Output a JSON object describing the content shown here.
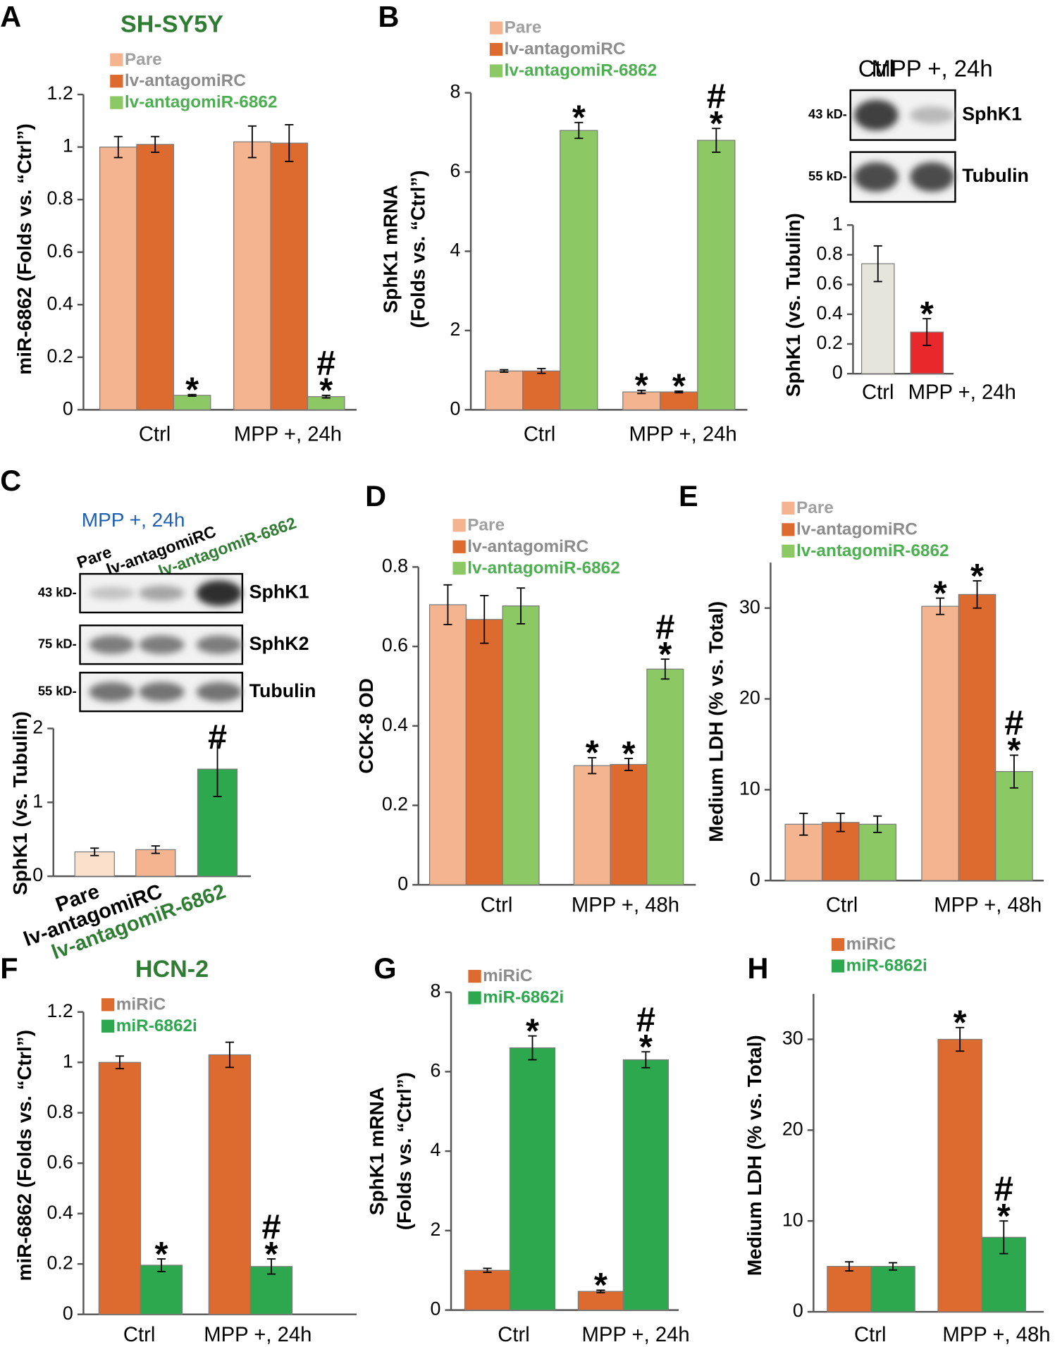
{
  "chart_data": [
    {
      "type": "bar",
      "panel": "A",
      "title": "SH-SY5Y",
      "title_color": "#2e7d32",
      "ylabel": [
        "miR-6862 (Folds vs. “Ctrl”)"
      ],
      "categories": [
        "Ctrl",
        "MPP +, 24h"
      ],
      "ylim": [
        0,
        1.2
      ],
      "yticks": [
        0,
        0.2,
        0.4,
        0.6,
        0.8,
        1,
        1.2
      ],
      "series": [
        {
          "name": "Pare",
          "color": "#f4b48f",
          "label_color": "#a0a0a0",
          "values": [
            1.0,
            1.02
          ],
          "errors": [
            0.04,
            0.06
          ],
          "annotations": [
            null,
            null
          ]
        },
        {
          "name": "lv-antagomiRC",
          "color": "#dd6a2e",
          "label_color": "#8c8c8c",
          "values": [
            1.01,
            1.015
          ],
          "errors": [
            0.03,
            0.07
          ],
          "annotations": [
            null,
            null
          ]
        },
        {
          "name": "lv-antagomiR-6862",
          "color": "#8cc965",
          "label_color": "#4caf50",
          "values": [
            0.055,
            0.05
          ],
          "errors": [
            0.003,
            0.005
          ],
          "annotations": [
            "*",
            [
              "#",
              "*"
            ]
          ]
        }
      ]
    },
    {
      "type": "bar",
      "panel": "B",
      "ylabel": [
        "SphK1 mRNA",
        "(Folds vs. “Ctrl”)"
      ],
      "categories": [
        "Ctrl",
        "MPP +, 24h"
      ],
      "ylim": [
        0,
        8
      ],
      "yticks": [
        0,
        2,
        4,
        6,
        8
      ],
      "series": [
        {
          "name": "Pare",
          "color": "#f4b48f",
          "label_color": "#a0a0a0",
          "values": [
            0.98,
            0.45
          ],
          "errors": [
            0.03,
            0.04
          ],
          "annotations": [
            null,
            "*"
          ]
        },
        {
          "name": "lv-antagomiRC",
          "color": "#dd6a2e",
          "label_color": "#8c8c8c",
          "values": [
            0.98,
            0.45
          ],
          "errors": [
            0.06,
            0.02
          ],
          "annotations": [
            null,
            "*"
          ]
        },
        {
          "name": "lv-antagomiR-6862",
          "color": "#8cc965",
          "label_color": "#4caf50",
          "values": [
            7.05,
            6.8
          ],
          "errors": [
            0.2,
            0.3
          ],
          "annotations": [
            "*",
            [
              "#",
              "*"
            ]
          ]
        }
      ]
    },
    {
      "type": "bar",
      "ylabel": [
        "SphK1 (vs. Tubulin)"
      ],
      "categories": [
        "Ctrl",
        "MPP +, 24h"
      ],
      "ylim": [
        0,
        1
      ],
      "yticks": [
        0,
        0.2,
        0.4,
        0.6,
        0.8,
        1
      ],
      "series": [
        {
          "colors": [
            "#e6e5dc",
            "#e8282a"
          ],
          "values": [
            0.74,
            0.28
          ],
          "errors": [
            0.12,
            0.09
          ],
          "annotations": [
            null,
            "*"
          ]
        }
      ]
    },
    {
      "type": "bar",
      "ylabel": [
        "SphK1 (vs. Tubulin)"
      ],
      "categories": [
        "Pare",
        "lv-antagomiRC",
        "lv-antagomiR-6862"
      ],
      "category_colors": [
        "#000000",
        "#000000",
        "#2e7d32"
      ],
      "ylim": [
        0,
        2
      ],
      "yticks": [
        0,
        1,
        2
      ],
      "series": [
        {
          "colors": [
            "#fbe0cc",
            "#f4b48f",
            "#2ea84f"
          ],
          "values": [
            0.33,
            0.36,
            1.45
          ],
          "errors": [
            0.05,
            0.05,
            0.37
          ],
          "annotations": [
            null,
            null,
            "#"
          ]
        }
      ]
    },
    {
      "type": "bar",
      "panel": "D",
      "ylabel": [
        "CCK-8 OD"
      ],
      "categories": [
        "Ctrl",
        "MPP +, 48h"
      ],
      "ylim": [
        0,
        0.8
      ],
      "yticks": [
        0,
        0.2,
        0.4,
        0.6,
        0.8
      ],
      "series": [
        {
          "name": "Pare",
          "color": "#f4b48f",
          "label_color": "#a0a0a0",
          "values": [
            0.705,
            0.3
          ],
          "errors": [
            0.05,
            0.02
          ],
          "annotations": [
            null,
            "*"
          ]
        },
        {
          "name": "lv-antagomiRC",
          "color": "#dd6a2e",
          "label_color": "#8c8c8c",
          "values": [
            0.668,
            0.303
          ],
          "errors": [
            0.06,
            0.015
          ],
          "annotations": [
            null,
            "*"
          ]
        },
        {
          "name": "lv-antagomiR-6862",
          "color": "#8cc965",
          "label_color": "#4caf50",
          "values": [
            0.702,
            0.543
          ],
          "errors": [
            0.045,
            0.025
          ],
          "annotations": [
            null,
            [
              "#",
              "*"
            ]
          ]
        }
      ]
    },
    {
      "type": "bar",
      "panel": "E",
      "ylabel": [
        "Medium LDH (% vs. Total)"
      ],
      "categories": [
        "Ctrl",
        "MPP +, 48h"
      ],
      "ylim": [
        0,
        35
      ],
      "yticks": [
        0,
        10,
        20,
        30
      ],
      "series": [
        {
          "name": "Pare",
          "color": "#f4b48f",
          "label_color": "#a0a0a0",
          "values": [
            6.2,
            30.2
          ],
          "errors": [
            1.2,
            0.9
          ],
          "annotations": [
            null,
            "*"
          ]
        },
        {
          "name": "lv-antagomiRC",
          "color": "#dd6a2e",
          "label_color": "#8c8c8c",
          "values": [
            6.4,
            31.5
          ],
          "errors": [
            1.0,
            1.5
          ],
          "annotations": [
            null,
            "*"
          ]
        },
        {
          "name": "lv-antagomiR-6862",
          "color": "#8cc965",
          "label_color": "#4caf50",
          "values": [
            6.2,
            12.0
          ],
          "errors": [
            0.9,
            1.8
          ],
          "annotations": [
            null,
            [
              "#",
              "*"
            ]
          ]
        }
      ]
    },
    {
      "type": "bar",
      "panel": "F",
      "title": "HCN-2",
      "title_color": "#2e7d32",
      "ylabel": [
        "miR-6862 (Folds vs. “Ctrl”)"
      ],
      "categories": [
        "Ctrl",
        "MPP +, 24h"
      ],
      "ylim": [
        0,
        1.2
      ],
      "yticks": [
        0,
        0.2,
        0.4,
        0.6,
        0.8,
        1,
        1.2
      ],
      "series": [
        {
          "name": "miRiC",
          "color": "#dd6a2e",
          "label_color": "#8c8c8c",
          "values": [
            1.0,
            1.03
          ],
          "errors": [
            0.025,
            0.05
          ],
          "annotations": [
            null,
            null
          ]
        },
        {
          "name": "miR-6862i",
          "color": "#2ea84f",
          "label_color": "#2ea84f",
          "values": [
            0.195,
            0.19
          ],
          "errors": [
            0.025,
            0.03
          ],
          "annotations": [
            "*",
            [
              "#",
              "*"
            ]
          ]
        }
      ]
    },
    {
      "type": "bar",
      "panel": "G",
      "ylabel": [
        "SphK1 mRNA",
        "(Folds vs. “Ctrl”)"
      ],
      "categories": [
        "Ctrl",
        "MPP +, 24h"
      ],
      "ylim": [
        0,
        8
      ],
      "yticks": [
        0,
        2,
        4,
        6,
        8
      ],
      "series": [
        {
          "name": "miRiC",
          "color": "#dd6a2e",
          "label_color": "#8c8c8c",
          "values": [
            1.0,
            0.47
          ],
          "errors": [
            0.05,
            0.03
          ],
          "annotations": [
            null,
            "*"
          ]
        },
        {
          "name": "miR-6862i",
          "color": "#2ea84f",
          "label_color": "#2ea84f",
          "values": [
            6.6,
            6.3
          ],
          "errors": [
            0.3,
            0.2
          ],
          "annotations": [
            "*",
            [
              "#",
              "*"
            ]
          ]
        }
      ]
    },
    {
      "type": "bar",
      "panel": "H",
      "ylabel": [
        "Medium LDH (% vs. Total)"
      ],
      "categories": [
        "Ctrl",
        "MPP +, 48h"
      ],
      "ylim": [
        0,
        35
      ],
      "yticks": [
        0,
        10,
        20,
        30
      ],
      "series": [
        {
          "name": "miRiC",
          "color": "#dd6a2e",
          "label_color": "#8c8c8c",
          "values": [
            5.0,
            30.0
          ],
          "errors": [
            0.5,
            1.3
          ],
          "annotations": [
            null,
            "*"
          ]
        },
        {
          "name": "miR-6862i",
          "color": "#2ea84f",
          "label_color": "#2ea84f",
          "values": [
            5.0,
            8.2
          ],
          "errors": [
            0.4,
            1.8
          ],
          "annotations": [
            null,
            [
              "#",
              "*"
            ]
          ]
        }
      ]
    }
  ],
  "blots": [
    {
      "lanes": [
        "Ctrl",
        "MPP +, 24h"
      ],
      "rows": [
        {
          "kd": "43 kD-",
          "name": "SphK1"
        },
        {
          "kd": "55 kD-",
          "name": "Tubulin"
        }
      ]
    },
    {
      "panel": "C",
      "condition": "MPP +, 24h",
      "condition_color": "#1f5fb4",
      "lanes": [
        "Pare",
        "lv-antagomiRC",
        "lv-antagomiR-6862"
      ],
      "lane_colors": [
        "#000000",
        "#000000",
        "#2e7d32"
      ],
      "rows": [
        {
          "kd": "43 kD-",
          "name": "SphK1"
        },
        {
          "kd": "75 kD-",
          "name": "SphK2"
        },
        {
          "kd": "55 kD-",
          "name": "Tubulin"
        }
      ]
    }
  ]
}
